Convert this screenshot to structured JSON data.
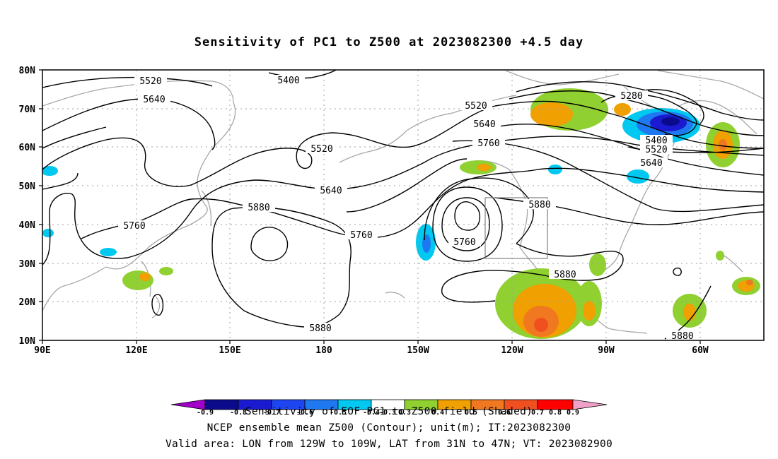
{
  "title": "Sensitivity of PC1 to Z500 at 2023082300 +4.5 day",
  "map": {
    "projection": "cylindrical equidistant",
    "lon_ticks": [
      "90E",
      "120E",
      "150E",
      "180",
      "150W",
      "120W",
      "90W",
      "60W"
    ],
    "lat_ticks": [
      "80N",
      "70N",
      "60N",
      "50N",
      "40N",
      "30N",
      "20N",
      "10N"
    ],
    "extent": {
      "lon_west": "90E",
      "lon_east": "52W",
      "lat_south": "10N",
      "lat_north": "80N"
    },
    "contour_labels": [
      "5520",
      "5400",
      "5640",
      "5520",
      "5280",
      "5520",
      "5640",
      "5760",
      "5400",
      "5520",
      "5640",
      "5640",
      "5880",
      "5760",
      "5760",
      "5880",
      "5760",
      "5880",
      "5880",
      "5880"
    ],
    "valid_area_box": {
      "lon": [
        "129W",
        "109W"
      ],
      "lat": [
        "31N",
        "47N"
      ]
    }
  },
  "colorbar": {
    "levels": [
      "-0.9",
      "-0.8",
      "-0.7",
      "-0.6",
      "-0.5",
      "-0.4",
      "-0.3",
      "0.3",
      "0.4",
      "0.5",
      "0.6",
      "0.7",
      "0.8",
      "0.9"
    ],
    "colors": [
      "#a000c8",
      "#0a0a8a",
      "#1a1ad0",
      "#1e46f0",
      "#1e78f0",
      "#1ea8f0",
      "#00c8f0",
      "#ffffff",
      "#90d030",
      "#f0a000",
      "#f07820",
      "#f05020",
      "#e02020",
      "#ff0000",
      "#f0a0c8"
    ]
  },
  "caption": {
    "line1": "Sensitivity of EOF PC1 to Z500 field (Shaded)",
    "line2": "NCEP ensemble mean Z500 (Contour); unit(m); IT:2023082300",
    "line3": "Valid area: LON from 129W to 109W, LAT from 31N to 47N; VT: 2023082900"
  }
}
